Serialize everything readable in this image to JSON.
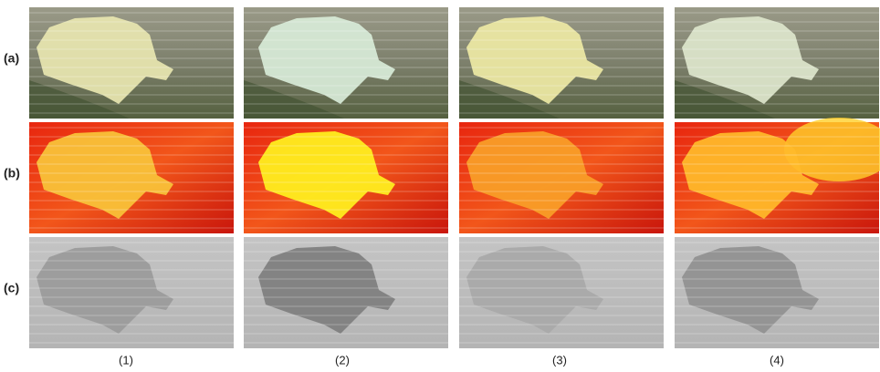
{
  "row_labels": [
    "(a)",
    "(b)",
    "(c)"
  ],
  "column_labels": [
    "(1)",
    "(2)",
    "(3)",
    "(4)"
  ]
}
